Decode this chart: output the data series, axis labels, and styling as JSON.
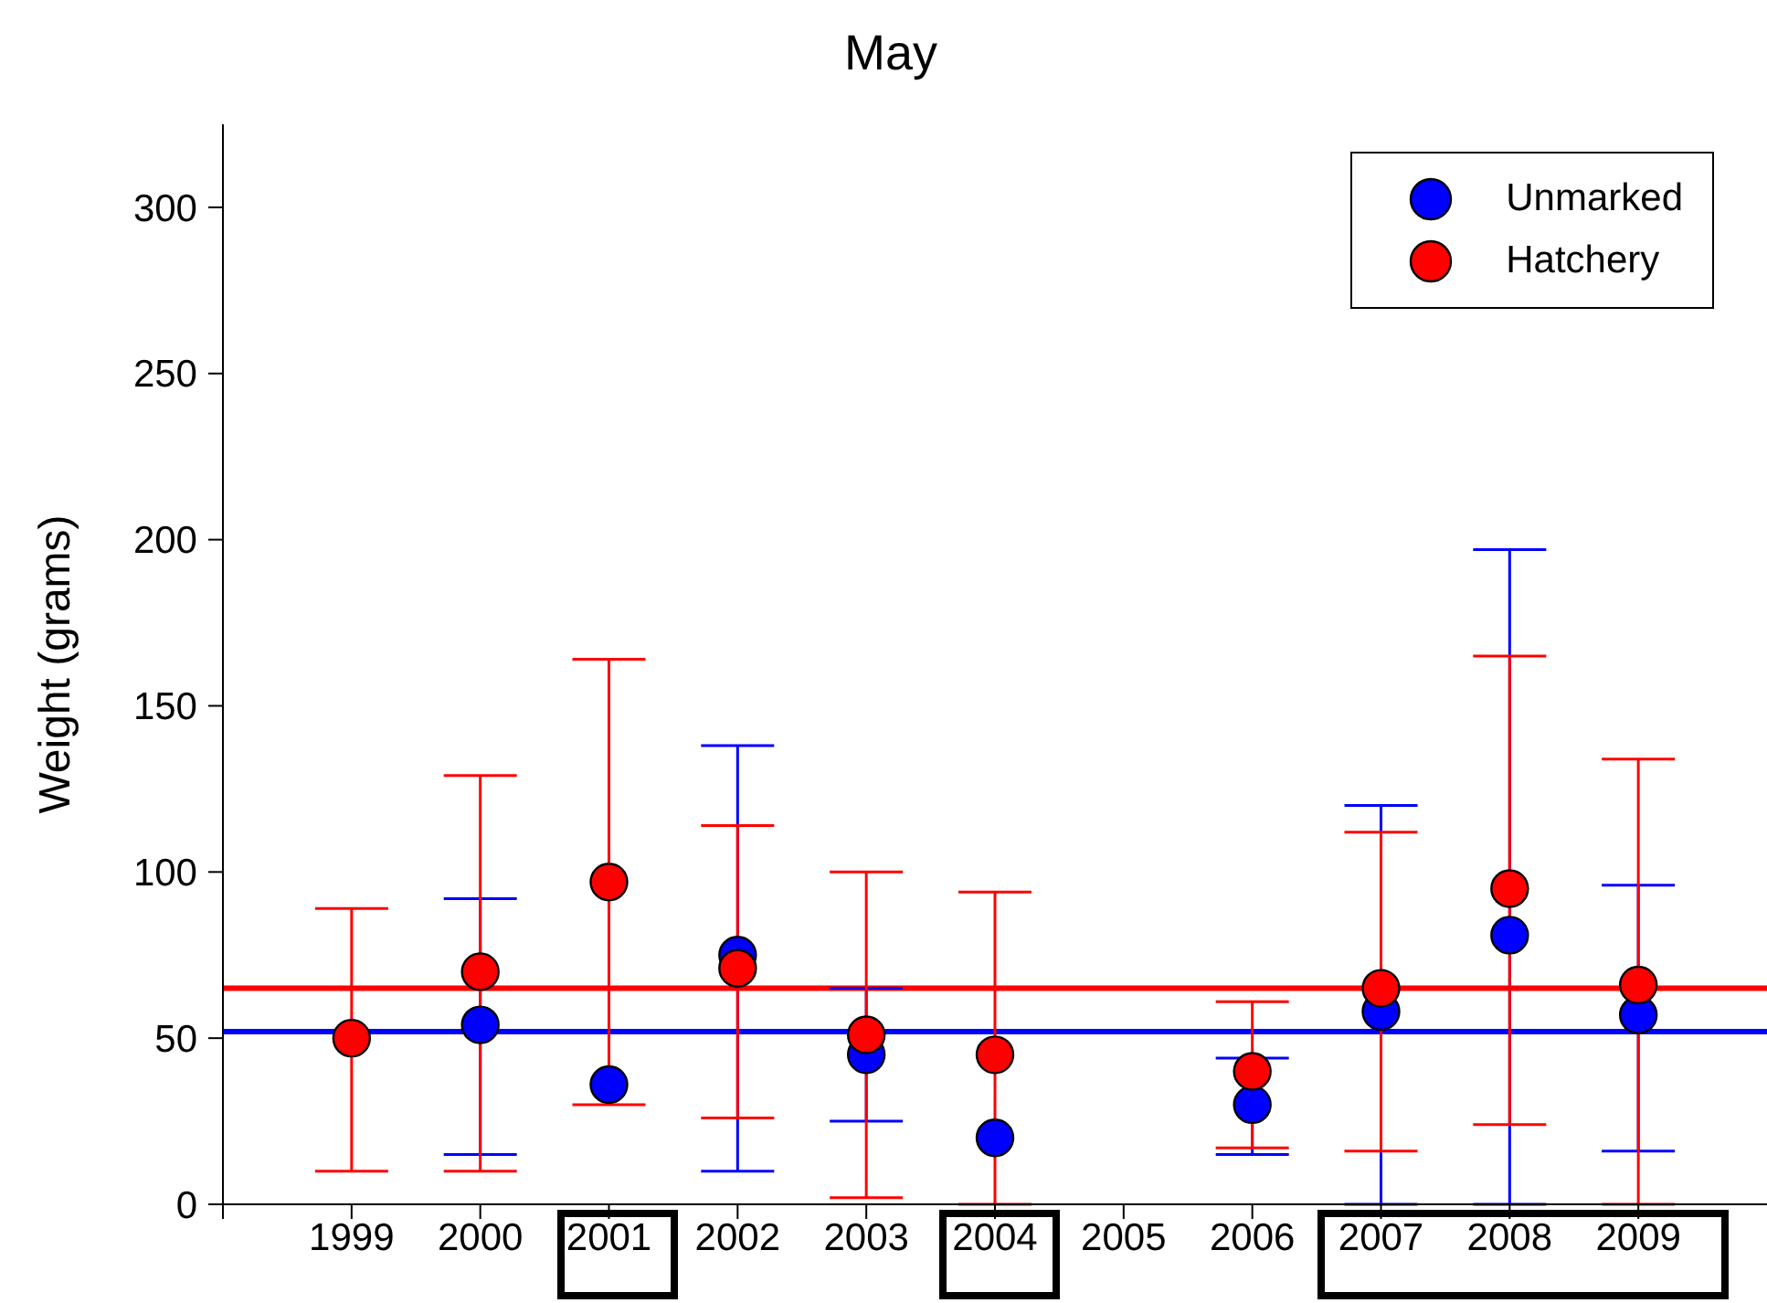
{
  "chart_data": {
    "type": "scatter",
    "title": "May",
    "ylabel": "Weight (grams)",
    "x": [
      1999,
      2000,
      2001,
      2002,
      2003,
      2004,
      2006,
      2007,
      2008,
      2009
    ],
    "series": [
      {
        "name": "Unmarked",
        "color": "#0000ff",
        "values": [
          null,
          54,
          36,
          75,
          45,
          20,
          30,
          58,
          81,
          57
        ],
        "errors": [
          null,
          [
            15,
            92
          ],
          null,
          [
            10,
            138
          ],
          [
            25,
            65
          ],
          null,
          [
            15,
            44
          ],
          [
            0,
            120
          ],
          [
            0,
            197
          ],
          [
            16,
            96
          ]
        ]
      },
      {
        "name": "Hatchery",
        "color": "#ff0000",
        "values": [
          50,
          70,
          97,
          71,
          51,
          45,
          40,
          65,
          95,
          66
        ],
        "errors": [
          [
            10,
            89
          ],
          [
            10,
            129
          ],
          [
            30,
            164
          ],
          [
            26,
            114
          ],
          [
            2,
            100
          ],
          [
            0,
            94
          ],
          [
            17,
            61
          ],
          [
            16,
            112
          ],
          [
            24,
            165
          ],
          [
            0,
            134
          ]
        ]
      }
    ],
    "ref_lines": [
      {
        "axis": "y",
        "value": 65,
        "color": "#ff0000"
      },
      {
        "axis": "y",
        "value": 52,
        "color": "#0000ff"
      }
    ],
    "xlim": [
      1998,
      2010
    ],
    "xticks": [
      {
        "value": 1998,
        "label": null
      },
      1999,
      2000,
      2001,
      2002,
      2003,
      2004,
      2005,
      2006,
      2007,
      2008,
      2009
    ],
    "ylim": [
      0,
      325
    ],
    "yticks": [
      0,
      50,
      100,
      150,
      200,
      250,
      300
    ],
    "marker": "circle",
    "legend": "top right",
    "grid": false
  }
}
